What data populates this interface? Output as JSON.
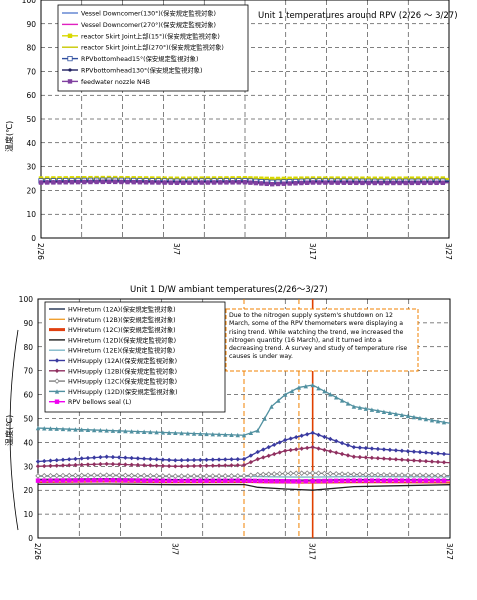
{
  "chart_data": [
    {
      "type": "line",
      "title": "Unit 1 temperatures around RPV (2/26 ～ 3/27)",
      "ylabel": "温度(℃)",
      "ylim": [
        0,
        100
      ],
      "yticks": [
        0,
        10,
        20,
        30,
        40,
        50,
        60,
        70,
        80,
        90,
        100
      ],
      "xlim": [
        "2/26",
        "3/27"
      ],
      "xticks": [
        "2/26",
        "3/7",
        "3/17",
        "3/27"
      ],
      "grid": true,
      "legend": "top-left",
      "series": [
        {
          "name": "Vessel Downcomer(130°)(保安規定監視対象)",
          "color": "#5b7fd0",
          "marker": "none",
          "x": [
            "2/26",
            "3/2",
            "3/7",
            "3/12",
            "3/14",
            "3/17",
            "3/22",
            "3/27"
          ],
          "values": [
            24.5,
            24.8,
            24.4,
            24.6,
            24.2,
            24.5,
            24.3,
            24.4
          ]
        },
        {
          "name": "Vessel Downcomer(270°)(保安規定監視対象)",
          "color": "#e020c0",
          "marker": "none",
          "x": [
            "2/26",
            "3/2",
            "3/7",
            "3/12",
            "3/14",
            "3/17",
            "3/22",
            "3/27"
          ],
          "values": [
            24.8,
            25.0,
            24.7,
            24.9,
            24.5,
            24.8,
            24.6,
            24.7
          ]
        },
        {
          "name": "reactor Skirt Joint上部(15°)(保安規定監視対象)",
          "color": "#d8d800",
          "marker": "square",
          "x": [
            "2/26",
            "3/2",
            "3/7",
            "3/12",
            "3/14",
            "3/17",
            "3/22",
            "3/27"
          ],
          "values": [
            25.0,
            25.2,
            24.9,
            25.1,
            24.8,
            25.0,
            24.9,
            25.0
          ]
        },
        {
          "name": "reactor Skirt Joint上部(270°)(保安規定監視対象)",
          "color": "#c8c800",
          "marker": "none",
          "x": [
            "2/26",
            "3/2",
            "3/7",
            "3/12",
            "3/14",
            "3/17",
            "3/22",
            "3/27"
          ],
          "values": [
            24.7,
            24.9,
            24.6,
            24.8,
            24.4,
            24.7,
            24.5,
            24.6
          ]
        },
        {
          "name": "RPVbottomhead15°(保安規定監視対象)",
          "color": "#3050a0",
          "marker": "square-open",
          "x": [
            "2/26",
            "3/2",
            "3/7",
            "3/12",
            "3/14",
            "3/17",
            "3/22",
            "3/27"
          ],
          "values": [
            24.0,
            24.3,
            23.9,
            24.1,
            23.4,
            24.0,
            23.8,
            23.9
          ]
        },
        {
          "name": "RPVbottomhead130°(保安規定監視対象)",
          "color": "#202060",
          "marker": "dot",
          "x": [
            "2/26",
            "3/2",
            "3/7",
            "3/12",
            "3/14",
            "3/17",
            "3/22",
            "3/27"
          ],
          "values": [
            23.6,
            23.9,
            23.5,
            23.7,
            22.8,
            23.6,
            23.4,
            23.5
          ]
        },
        {
          "name": "feedwater nozzle N4B",
          "color": "#8040a0",
          "marker": "square",
          "x": [
            "2/26",
            "3/2",
            "3/7",
            "3/12",
            "3/14",
            "3/17",
            "3/22",
            "3/27"
          ],
          "values": [
            23.3,
            23.6,
            23.2,
            23.4,
            22.6,
            23.3,
            23.1,
            23.2
          ]
        }
      ]
    },
    {
      "type": "line",
      "title": "Unit 1 D/W ambiant temperatures(2/26～3/27)",
      "ylabel": "温度(℃)",
      "ylim": [
        0,
        100
      ],
      "yticks": [
        0,
        10,
        20,
        30,
        40,
        50,
        60,
        70,
        80,
        90,
        100
      ],
      "xlim": [
        "2/26",
        "3/27"
      ],
      "xticks": [
        "2/26",
        "3/7",
        "3/17",
        "3/27"
      ],
      "grid": true,
      "legend": "top-left",
      "annotation": "Due to the nitrogen supply system's shutdown on 12 March, some of the RPV themometers were displaying a rising trend. While watching the trend, we increased the nitrogen quantity (16 March), and it turned into a decreasing trend. A survey and study of temperature rise causes is under way.",
      "markers": [
        {
          "x": "3/12",
          "color": "#f08000",
          "style": "dash"
        },
        {
          "x": "3/16",
          "color": "#f08000",
          "style": "dash"
        },
        {
          "x": "3/17",
          "color": "#e04000",
          "style": "solid"
        }
      ],
      "series": [
        {
          "name": "HVHreturn (12A)(保安規定監視対象)",
          "color": "#203050",
          "marker": "none",
          "x": [
            "2/26",
            "3/2",
            "3/7",
            "3/12",
            "3/14",
            "3/16",
            "3/17",
            "3/20",
            "3/27"
          ],
          "values": [
            24.5,
            24.8,
            24.4,
            24.5,
            24.3,
            24.2,
            24.2,
            24.4,
            24.3
          ]
        },
        {
          "name": "HVHreturn (12B)(保安規定監視対象)",
          "color": "#f0a030",
          "marker": "none",
          "x": [
            "2/26",
            "3/2",
            "3/7",
            "3/12",
            "3/14",
            "3/16",
            "3/17",
            "3/20",
            "3/27"
          ],
          "values": [
            24.0,
            24.3,
            23.9,
            24.0,
            23.8,
            23.7,
            23.7,
            23.9,
            23.8
          ]
        },
        {
          "name": "HVHreturn (12C)(保安規定監視対象)",
          "color": "#e04010",
          "marker": "none",
          "x": [
            "2/26",
            "3/2",
            "3/7",
            "3/12",
            "3/14",
            "3/16",
            "3/17",
            "3/20",
            "3/27"
          ],
          "values": [
            23.3,
            23.5,
            23.2,
            23.3,
            23.1,
            23.0,
            23.0,
            23.2,
            23.1
          ]
        },
        {
          "name": "HVHreturn (12D)(保安規定監視対象)",
          "color": "#202020",
          "marker": "none",
          "x": [
            "2/26",
            "3/2",
            "3/7",
            "3/12",
            "3/13",
            "3/15",
            "3/17",
            "3/20",
            "3/27"
          ],
          "values": [
            22.5,
            22.6,
            22.3,
            22.4,
            21.2,
            20.5,
            20.0,
            21.5,
            22.3
          ]
        },
        {
          "name": "HVHreturn (12E)(保安規定監視対象)",
          "color": "#80b8c8",
          "marker": "none",
          "x": [
            "2/26",
            "3/2",
            "3/7",
            "3/12",
            "3/14",
            "3/16",
            "3/17",
            "3/20",
            "3/27"
          ],
          "values": [
            25.8,
            26.1,
            25.7,
            25.8,
            25.6,
            25.5,
            25.5,
            25.7,
            25.6
          ]
        },
        {
          "name": "HVHsupply (12A)(保安規定監視対象)",
          "color": "#3a3aa0",
          "marker": "diamond",
          "x": [
            "2/26",
            "3/2",
            "3/7",
            "3/12",
            "3/13",
            "3/15",
            "3/17",
            "3/20",
            "3/27"
          ],
          "values": [
            32.0,
            34.0,
            32.5,
            33.0,
            36.0,
            41.0,
            44.0,
            38.0,
            35.0
          ]
        },
        {
          "name": "HVHsupply (12B)(保安規定監視対象)",
          "color": "#903060",
          "marker": "diamond",
          "x": [
            "2/26",
            "3/2",
            "3/7",
            "3/12",
            "3/13",
            "3/15",
            "3/17",
            "3/20",
            "3/27"
          ],
          "values": [
            30.0,
            31.0,
            30.0,
            30.5,
            33.0,
            36.5,
            38.0,
            34.0,
            31.5
          ]
        },
        {
          "name": "HVHsupply (12C)(保安規定監視対象)",
          "color": "#808080",
          "marker": "diamond-open",
          "x": [
            "2/26",
            "3/2",
            "3/7",
            "3/12",
            "3/13",
            "3/15",
            "3/17",
            "3/20",
            "3/27"
          ],
          "values": [
            26.0,
            26.3,
            25.9,
            26.0,
            26.5,
            27.0,
            27.2,
            26.6,
            26.1
          ]
        },
        {
          "name": "HVHsupply (12D)(保安規定監視対象)",
          "color": "#5090a0",
          "marker": "triangle",
          "x": [
            "2/26",
            "3/2",
            "3/7",
            "3/12",
            "3/13",
            "3/14",
            "3/15",
            "3/16",
            "3/17",
            "3/20",
            "3/27"
          ],
          "values": [
            46.0,
            45.0,
            44.0,
            43.0,
            45.0,
            55.0,
            60.0,
            63.0,
            64.0,
            55.0,
            48.0
          ]
        },
        {
          "name": "RPV bellows seal (L)",
          "color": "#f000f0",
          "marker": "square",
          "x": [
            "2/26",
            "3/2",
            "3/7",
            "3/12",
            "3/14",
            "3/16",
            "3/17",
            "3/20",
            "3/27"
          ],
          "values": [
            24.0,
            24.2,
            23.9,
            24.0,
            23.8,
            23.7,
            23.8,
            24.0,
            24.0
          ]
        }
      ]
    }
  ]
}
